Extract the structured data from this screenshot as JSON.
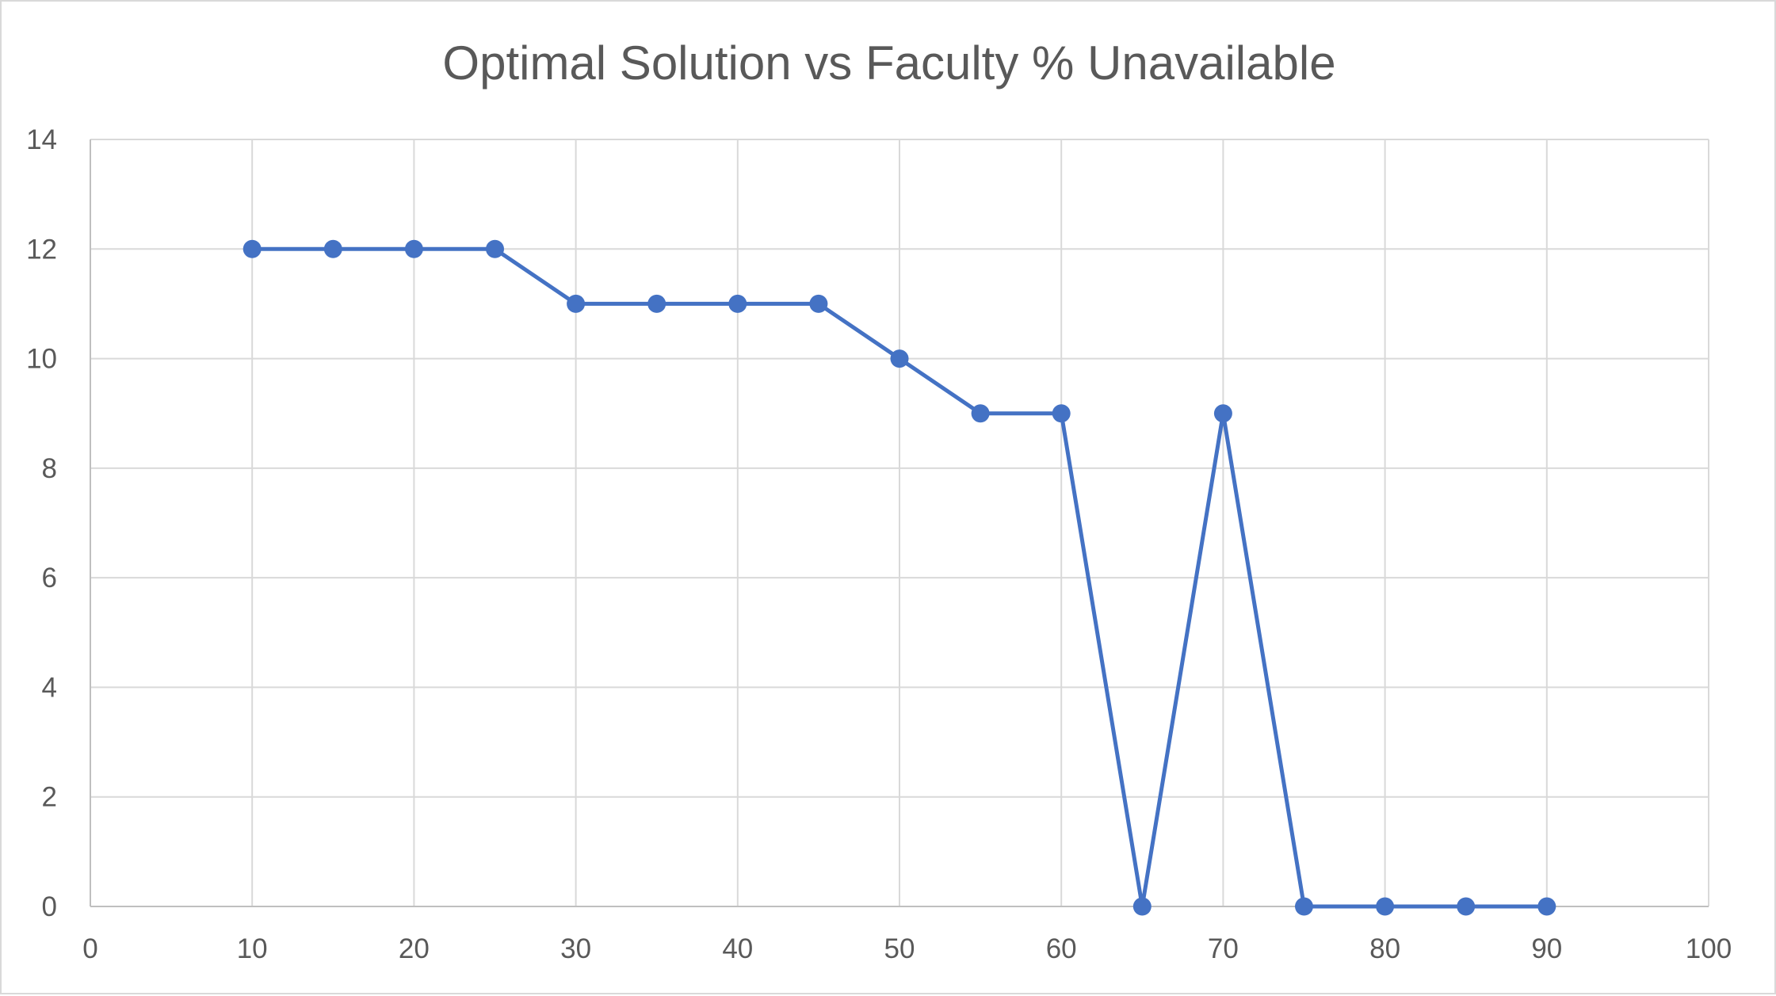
{
  "chart_data": {
    "type": "line",
    "title": "Optimal Solution vs Faculty % Unavailable",
    "xlabel": "",
    "ylabel": "",
    "xlim": [
      0,
      100
    ],
    "ylim": [
      0,
      14
    ],
    "x_ticks": [
      0,
      10,
      20,
      30,
      40,
      50,
      60,
      70,
      80,
      90,
      100
    ],
    "y_ticks": [
      0,
      2,
      4,
      6,
      8,
      10,
      12,
      14
    ],
    "grid": true,
    "legend": "none",
    "series": [
      {
        "color": "#4472C4",
        "marker": "circle",
        "x": [
          10,
          15,
          20,
          25,
          30,
          35,
          40,
          45,
          50,
          55,
          60,
          65,
          70,
          75,
          80,
          85,
          90
        ],
        "y": [
          12,
          12,
          12,
          12,
          11,
          11,
          11,
          11,
          10,
          9,
          9,
          0,
          9,
          0,
          0,
          0,
          0
        ]
      }
    ]
  }
}
